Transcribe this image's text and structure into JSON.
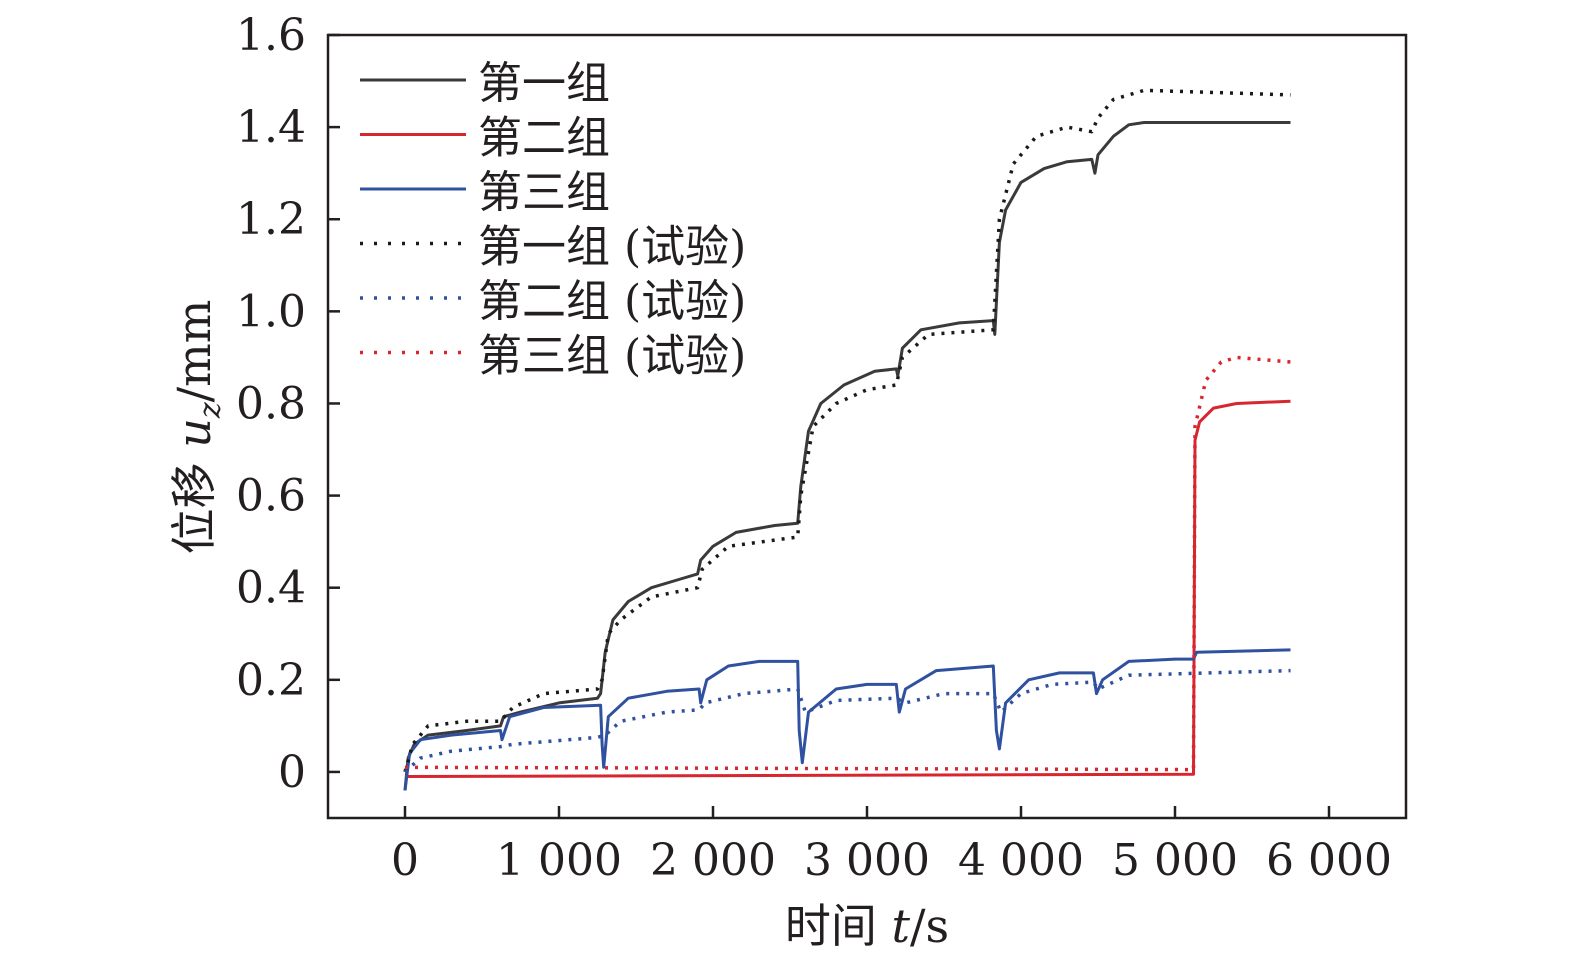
{
  "chart_data": {
    "type": "line",
    "title": "",
    "xlabel": "时间 t/s",
    "xlabel_parts": {
      "prefix": "时间 ",
      "var": "t",
      "unit": "/s"
    },
    "ylabel": "位移 u_z/mm",
    "ylabel_parts": {
      "prefix": "位移 ",
      "var": "u",
      "sub": "z",
      "unit": "/mm"
    },
    "xlim": [
      -500,
      6500
    ],
    "ylim": [
      -0.1,
      1.6
    ],
    "xticks": [
      0,
      1000,
      2000,
      3000,
      4000,
      5000,
      6000
    ],
    "xtick_labels": [
      "0",
      "1 000",
      "2 000",
      "3 000",
      "4 000",
      "5 000",
      "6 000"
    ],
    "yticks": [
      0,
      0.2,
      0.4,
      0.6,
      0.8,
      1.0,
      1.2,
      1.4,
      1.6
    ],
    "ytick_labels": [
      "0",
      "0.2",
      "0.4",
      "0.6",
      "0.8",
      "1.0",
      "1.2",
      "1.4",
      "1.6"
    ],
    "grid": false,
    "legend_position": "top-left",
    "series": [
      {
        "name": "第一组",
        "color": "#3a3a3a",
        "style": "solid",
        "points": [
          [
            0,
            -0.04
          ],
          [
            20,
            0.03
          ],
          [
            60,
            0.06
          ],
          [
            150,
            0.08
          ],
          [
            400,
            0.09
          ],
          [
            620,
            0.1
          ],
          [
            640,
            0.12
          ],
          [
            750,
            0.13
          ],
          [
            1000,
            0.15
          ],
          [
            1250,
            0.16
          ],
          [
            1270,
            0.17
          ],
          [
            1300,
            0.26
          ],
          [
            1350,
            0.33
          ],
          [
            1450,
            0.37
          ],
          [
            1600,
            0.4
          ],
          [
            1800,
            0.42
          ],
          [
            1900,
            0.43
          ],
          [
            1920,
            0.46
          ],
          [
            2000,
            0.49
          ],
          [
            2150,
            0.52
          ],
          [
            2400,
            0.535
          ],
          [
            2550,
            0.54
          ],
          [
            2570,
            0.62
          ],
          [
            2620,
            0.74
          ],
          [
            2700,
            0.8
          ],
          [
            2850,
            0.84
          ],
          [
            3050,
            0.87
          ],
          [
            3190,
            0.875
          ],
          [
            3200,
            0.86
          ],
          [
            3230,
            0.92
          ],
          [
            3350,
            0.96
          ],
          [
            3600,
            0.975
          ],
          [
            3820,
            0.98
          ],
          [
            3830,
            0.95
          ],
          [
            3860,
            1.15
          ],
          [
            3900,
            1.22
          ],
          [
            4000,
            1.28
          ],
          [
            4150,
            1.31
          ],
          [
            4300,
            1.325
          ],
          [
            4460,
            1.33
          ],
          [
            4480,
            1.3
          ],
          [
            4500,
            1.34
          ],
          [
            4600,
            1.38
          ],
          [
            4700,
            1.405
          ],
          [
            4800,
            1.41
          ],
          [
            5750,
            1.41
          ]
        ]
      },
      {
        "name": "第二组",
        "color": "#d7262e",
        "style": "solid",
        "points": [
          [
            0,
            -0.01
          ],
          [
            5120,
            -0.005
          ],
          [
            5130,
            0.72
          ],
          [
            5160,
            0.76
          ],
          [
            5250,
            0.79
          ],
          [
            5400,
            0.8
          ],
          [
            5750,
            0.805
          ]
        ]
      },
      {
        "name": "第三组",
        "color": "#3050a0",
        "style": "solid",
        "points": [
          [
            0,
            -0.04
          ],
          [
            30,
            0.04
          ],
          [
            100,
            0.07
          ],
          [
            300,
            0.08
          ],
          [
            620,
            0.09
          ],
          [
            630,
            0.07
          ],
          [
            680,
            0.12
          ],
          [
            900,
            0.14
          ],
          [
            1270,
            0.145
          ],
          [
            1280,
            0.06
          ],
          [
            1290,
            0.01
          ],
          [
            1320,
            0.12
          ],
          [
            1450,
            0.16
          ],
          [
            1700,
            0.175
          ],
          [
            1910,
            0.18
          ],
          [
            1920,
            0.15
          ],
          [
            1960,
            0.2
          ],
          [
            2100,
            0.23
          ],
          [
            2300,
            0.24
          ],
          [
            2550,
            0.24
          ],
          [
            2560,
            0.09
          ],
          [
            2580,
            0.02
          ],
          [
            2620,
            0.13
          ],
          [
            2800,
            0.18
          ],
          [
            3000,
            0.19
          ],
          [
            3190,
            0.19
          ],
          [
            3210,
            0.13
          ],
          [
            3250,
            0.18
          ],
          [
            3450,
            0.22
          ],
          [
            3820,
            0.23
          ],
          [
            3840,
            0.09
          ],
          [
            3860,
            0.05
          ],
          [
            3900,
            0.15
          ],
          [
            4050,
            0.2
          ],
          [
            4250,
            0.215
          ],
          [
            4470,
            0.215
          ],
          [
            4490,
            0.17
          ],
          [
            4530,
            0.2
          ],
          [
            4700,
            0.24
          ],
          [
            5000,
            0.245
          ],
          [
            5120,
            0.245
          ],
          [
            5140,
            0.26
          ],
          [
            5750,
            0.265
          ]
        ]
      },
      {
        "name": "第一组 (试验)",
        "color": "#1a1a1a",
        "style": "dotted",
        "points": [
          [
            0,
            0
          ],
          [
            50,
            0.06
          ],
          [
            150,
            0.1
          ],
          [
            400,
            0.11
          ],
          [
            620,
            0.11
          ],
          [
            700,
            0.14
          ],
          [
            900,
            0.17
          ],
          [
            1250,
            0.18
          ],
          [
            1280,
            0.2
          ],
          [
            1320,
            0.3
          ],
          [
            1400,
            0.33
          ],
          [
            1600,
            0.38
          ],
          [
            1900,
            0.4
          ],
          [
            1930,
            0.44
          ],
          [
            2100,
            0.49
          ],
          [
            2550,
            0.51
          ],
          [
            2570,
            0.6
          ],
          [
            2650,
            0.75
          ],
          [
            2800,
            0.8
          ],
          [
            3000,
            0.83
          ],
          [
            3190,
            0.84
          ],
          [
            3230,
            0.9
          ],
          [
            3400,
            0.95
          ],
          [
            3820,
            0.96
          ],
          [
            3860,
            1.2
          ],
          [
            3950,
            1.32
          ],
          [
            4100,
            1.38
          ],
          [
            4300,
            1.4
          ],
          [
            4460,
            1.39
          ],
          [
            4500,
            1.42
          ],
          [
            4600,
            1.46
          ],
          [
            4800,
            1.48
          ],
          [
            5750,
            1.47
          ]
        ]
      },
      {
        "name": "第二组 (试验)",
        "color": "#3050a0",
        "style": "dotted",
        "points": [
          [
            0,
            0
          ],
          [
            100,
            0.03
          ],
          [
            300,
            0.045
          ],
          [
            620,
            0.055
          ],
          [
            700,
            0.06
          ],
          [
            1250,
            0.075
          ],
          [
            1300,
            0.08
          ],
          [
            1400,
            0.11
          ],
          [
            1700,
            0.13
          ],
          [
            1910,
            0.135
          ],
          [
            1950,
            0.15
          ],
          [
            2200,
            0.17
          ],
          [
            2550,
            0.18
          ],
          [
            2600,
            0.13
          ],
          [
            2800,
            0.155
          ],
          [
            3190,
            0.16
          ],
          [
            3250,
            0.15
          ],
          [
            3500,
            0.17
          ],
          [
            3820,
            0.17
          ],
          [
            3870,
            0.13
          ],
          [
            4000,
            0.17
          ],
          [
            4200,
            0.19
          ],
          [
            4470,
            0.195
          ],
          [
            4500,
            0.18
          ],
          [
            4700,
            0.21
          ],
          [
            5750,
            0.22
          ]
        ]
      },
      {
        "name": "第三组 (试验)",
        "color": "#d7262e",
        "style": "dotted",
        "points": [
          [
            0,
            0.01
          ],
          [
            5120,
            0.005
          ],
          [
            5130,
            0.75
          ],
          [
            5200,
            0.85
          ],
          [
            5300,
            0.89
          ],
          [
            5400,
            0.9
          ],
          [
            5750,
            0.89
          ]
        ]
      }
    ]
  }
}
